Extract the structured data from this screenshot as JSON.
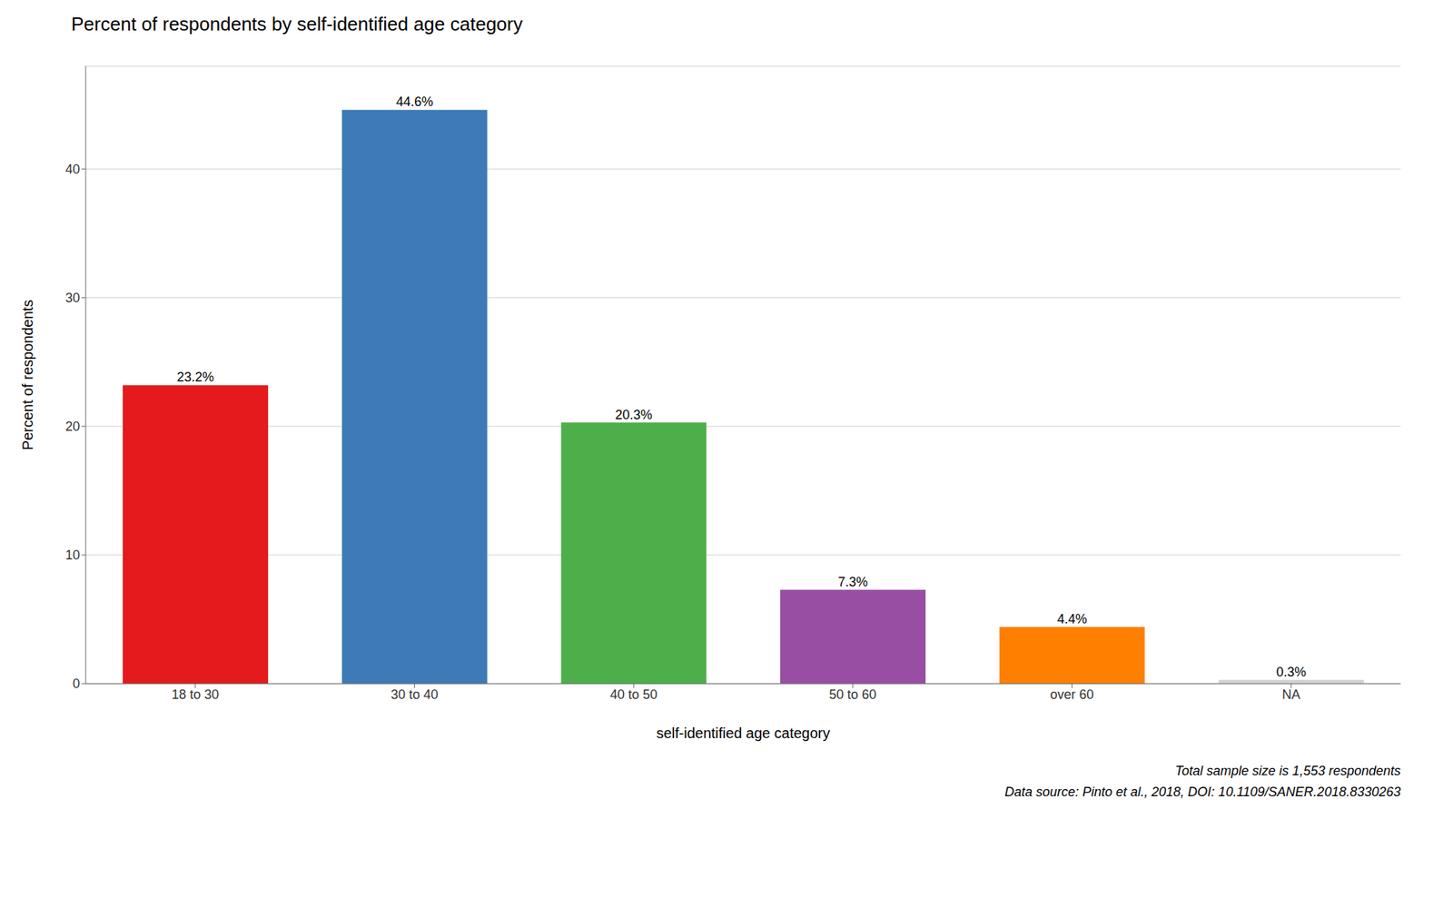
{
  "chart_data": {
    "type": "bar",
    "title": "Percent of respondents by self-identified age category",
    "xlabel": "self-identified age category",
    "ylabel": "Percent of respondents",
    "categories": [
      "18 to 30",
      "30 to 40",
      "40 to 50",
      "50 to 60",
      "over 60",
      "NA"
    ],
    "values": [
      23.2,
      44.6,
      20.3,
      7.3,
      4.4,
      0.3
    ],
    "value_labels": [
      "23.2%",
      "44.6%",
      "20.3%",
      "7.3%",
      "4.4%",
      "0.3%"
    ],
    "colors": [
      "#e41a1c",
      "#3e7ab5",
      "#4daf4a",
      "#984ea3",
      "#ff7f00",
      "#d3d3d3"
    ],
    "ylim": [
      0,
      48
    ],
    "yticks": [
      0,
      10,
      20,
      30,
      40
    ],
    "grid": true,
    "data_labels": true,
    "annotations": [
      "Total sample size is 1,553 respondents",
      "Data source: Pinto et al., 2018, DOI: 10.1109/SANER.2018.8330263"
    ]
  }
}
